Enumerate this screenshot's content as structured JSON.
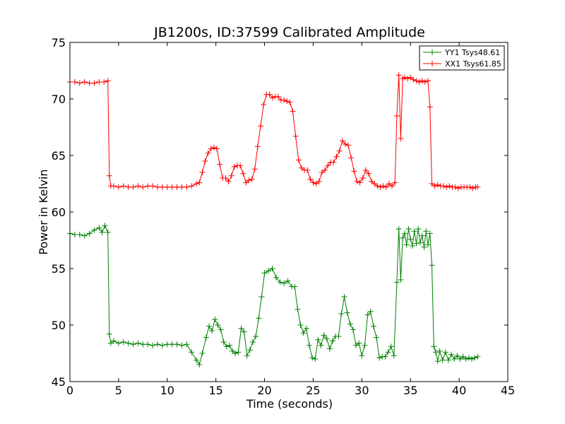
{
  "chart_data": {
    "type": "line",
    "title": "JB1200s, ID:37599 Calibrated Amplitude",
    "xlabel": "Time (seconds)",
    "ylabel": "Power in Kelvin",
    "xlim": [
      0,
      45
    ],
    "ylim": [
      45,
      75
    ],
    "xticks": [
      "0",
      "5",
      "10",
      "15",
      "20",
      "25",
      "30",
      "35",
      "40",
      "45"
    ],
    "yticks": [
      "45",
      "50",
      "55",
      "60",
      "65",
      "70",
      "75"
    ],
    "legend_position": "top-right",
    "marker": "plus",
    "series": [
      {
        "name": "YY1 Tsys48.61",
        "color": "#008000",
        "points": [
          [
            0,
            58.1
          ],
          [
            0.5,
            58.0
          ],
          [
            1,
            58.0
          ],
          [
            1.5,
            57.9
          ],
          [
            2,
            58.1
          ],
          [
            2.5,
            58.4
          ],
          [
            3,
            58.6
          ],
          [
            3.3,
            58.2
          ],
          [
            3.6,
            58.8
          ],
          [
            3.9,
            58.2
          ],
          [
            4.05,
            49.2
          ],
          [
            4.2,
            48.4
          ],
          [
            4.5,
            48.6
          ],
          [
            5,
            48.4
          ],
          [
            5.5,
            48.5
          ],
          [
            6,
            48.4
          ],
          [
            6.5,
            48.3
          ],
          [
            7,
            48.4
          ],
          [
            7.5,
            48.3
          ],
          [
            8,
            48.3
          ],
          [
            8.5,
            48.2
          ],
          [
            9,
            48.3
          ],
          [
            9.5,
            48.2
          ],
          [
            10,
            48.3
          ],
          [
            10.5,
            48.3
          ],
          [
            11,
            48.3
          ],
          [
            11.5,
            48.2
          ],
          [
            12,
            48.3
          ],
          [
            12.5,
            47.6
          ],
          [
            13,
            46.9
          ],
          [
            13.3,
            46.5
          ],
          [
            13.6,
            47.5
          ],
          [
            14,
            48.9
          ],
          [
            14.3,
            49.9
          ],
          [
            14.6,
            49.5
          ],
          [
            14.9,
            50.5
          ],
          [
            15.2,
            50.0
          ],
          [
            15.5,
            49.6
          ],
          [
            15.8,
            48.5
          ],
          [
            16.1,
            48.1
          ],
          [
            16.4,
            48.2
          ],
          [
            16.7,
            47.7
          ],
          [
            17,
            47.5
          ],
          [
            17.3,
            47.6
          ],
          [
            17.6,
            49.7
          ],
          [
            17.9,
            49.4
          ],
          [
            18.2,
            47.3
          ],
          [
            18.5,
            47.8
          ],
          [
            18.8,
            48.5
          ],
          [
            19.1,
            49.0
          ],
          [
            19.4,
            50.6
          ],
          [
            19.7,
            52.5
          ],
          [
            20,
            54.6
          ],
          [
            20.4,
            54.8
          ],
          [
            20.8,
            55.0
          ],
          [
            21.2,
            54.2
          ],
          [
            21.6,
            53.8
          ],
          [
            22,
            53.7
          ],
          [
            22.4,
            53.9
          ],
          [
            22.8,
            53.4
          ],
          [
            23.1,
            53.4
          ],
          [
            23.4,
            51.4
          ],
          [
            23.7,
            50.0
          ],
          [
            24,
            49.3
          ],
          [
            24.3,
            49.7
          ],
          [
            24.6,
            48.2
          ],
          [
            24.9,
            47.1
          ],
          [
            25.2,
            47.0
          ],
          [
            25.5,
            48.7
          ],
          [
            25.8,
            48.2
          ],
          [
            26.1,
            49.1
          ],
          [
            26.4,
            48.8
          ],
          [
            26.7,
            47.9
          ],
          [
            27,
            48.6
          ],
          [
            27.3,
            49.0
          ],
          [
            27.6,
            49.0
          ],
          [
            27.9,
            51.0
          ],
          [
            28.2,
            52.5
          ],
          [
            28.5,
            51.1
          ],
          [
            28.8,
            50.1
          ],
          [
            29.1,
            49.6
          ],
          [
            29.4,
            48.2
          ],
          [
            29.7,
            48.4
          ],
          [
            30,
            47.3
          ],
          [
            30.3,
            48.2
          ],
          [
            30.6,
            50.9
          ],
          [
            30.9,
            51.2
          ],
          [
            31.2,
            49.9
          ],
          [
            31.5,
            48.9
          ],
          [
            31.8,
            47.1
          ],
          [
            32.1,
            47.2
          ],
          [
            32.4,
            47.2
          ],
          [
            32.7,
            47.6
          ],
          [
            33,
            48.1
          ],
          [
            33.3,
            47.3
          ],
          [
            33.6,
            53.8
          ],
          [
            33.8,
            58.5
          ],
          [
            34,
            54.0
          ],
          [
            34.2,
            57.7
          ],
          [
            34.4,
            58.1
          ],
          [
            34.6,
            57.1
          ],
          [
            34.8,
            58.5
          ],
          [
            35,
            57.6
          ],
          [
            35.2,
            57.0
          ],
          [
            35.4,
            58.3
          ],
          [
            35.6,
            57.2
          ],
          [
            35.8,
            58.5
          ],
          [
            36,
            57.3
          ],
          [
            36.2,
            57.9
          ],
          [
            36.4,
            56.9
          ],
          [
            36.6,
            58.3
          ],
          [
            36.8,
            57.1
          ],
          [
            37,
            58.1
          ],
          [
            37.2,
            55.3
          ],
          [
            37.4,
            48.1
          ],
          [
            37.6,
            47.6
          ],
          [
            37.8,
            46.8
          ],
          [
            38,
            47.7
          ],
          [
            38.3,
            46.9
          ],
          [
            38.6,
            47.6
          ],
          [
            38.9,
            46.9
          ],
          [
            39.2,
            47.4
          ],
          [
            39.5,
            47.0
          ],
          [
            39.8,
            47.3
          ],
          [
            40.1,
            47.0
          ],
          [
            40.4,
            47.2
          ],
          [
            40.7,
            47.0
          ],
          [
            41,
            47.1
          ],
          [
            41.3,
            47.0
          ],
          [
            41.6,
            47.1
          ],
          [
            41.9,
            47.2
          ]
        ]
      },
      {
        "name": "XX1 Tsys61.85",
        "color": "#ff0000",
        "points": [
          [
            0,
            71.5
          ],
          [
            0.5,
            71.5
          ],
          [
            1,
            71.4
          ],
          [
            1.5,
            71.5
          ],
          [
            2,
            71.4
          ],
          [
            2.5,
            71.4
          ],
          [
            3,
            71.5
          ],
          [
            3.5,
            71.5
          ],
          [
            3.9,
            71.6
          ],
          [
            4.05,
            63.2
          ],
          [
            4.2,
            62.3
          ],
          [
            4.5,
            62.3
          ],
          [
            5,
            62.2
          ],
          [
            5.5,
            62.3
          ],
          [
            6,
            62.2
          ],
          [
            6.5,
            62.2
          ],
          [
            7,
            62.3
          ],
          [
            7.5,
            62.2
          ],
          [
            8,
            62.3
          ],
          [
            8.5,
            62.3
          ],
          [
            9,
            62.2
          ],
          [
            9.5,
            62.2
          ],
          [
            10,
            62.2
          ],
          [
            10.5,
            62.2
          ],
          [
            11,
            62.2
          ],
          [
            11.5,
            62.2
          ],
          [
            12,
            62.2
          ],
          [
            12.5,
            62.3
          ],
          [
            13,
            62.5
          ],
          [
            13.3,
            62.6
          ],
          [
            13.6,
            63.5
          ],
          [
            13.9,
            64.5
          ],
          [
            14.2,
            65.2
          ],
          [
            14.5,
            65.6
          ],
          [
            14.8,
            65.7
          ],
          [
            15.1,
            65.6
          ],
          [
            15.4,
            64.2
          ],
          [
            15.7,
            63.0
          ],
          [
            16,
            63.0
          ],
          [
            16.3,
            62.7
          ],
          [
            16.6,
            63.2
          ],
          [
            16.9,
            64.0
          ],
          [
            17.2,
            64.1
          ],
          [
            17.5,
            64.1
          ],
          [
            17.8,
            63.4
          ],
          [
            18.1,
            62.6
          ],
          [
            18.4,
            62.8
          ],
          [
            18.7,
            62.9
          ],
          [
            19,
            63.8
          ],
          [
            19.3,
            65.8
          ],
          [
            19.6,
            67.6
          ],
          [
            19.9,
            69.5
          ],
          [
            20.2,
            70.4
          ],
          [
            20.5,
            70.4
          ],
          [
            20.8,
            70.1
          ],
          [
            21.1,
            70.2
          ],
          [
            21.4,
            70.2
          ],
          [
            21.7,
            69.9
          ],
          [
            22,
            69.9
          ],
          [
            22.3,
            69.8
          ],
          [
            22.6,
            69.7
          ],
          [
            22.9,
            68.9
          ],
          [
            23.2,
            66.7
          ],
          [
            23.5,
            64.6
          ],
          [
            23.8,
            63.9
          ],
          [
            24.1,
            63.7
          ],
          [
            24.4,
            63.7
          ],
          [
            24.7,
            62.9
          ],
          [
            25,
            62.6
          ],
          [
            25.3,
            62.5
          ],
          [
            25.6,
            62.7
          ],
          [
            25.9,
            63.5
          ],
          [
            26.2,
            63.7
          ],
          [
            26.5,
            64.1
          ],
          [
            26.8,
            64.4
          ],
          [
            27.1,
            64.4
          ],
          [
            27.4,
            64.9
          ],
          [
            27.7,
            65.4
          ],
          [
            28,
            66.3
          ],
          [
            28.3,
            66.0
          ],
          [
            28.6,
            65.9
          ],
          [
            28.9,
            64.8
          ],
          [
            29.2,
            63.6
          ],
          [
            29.5,
            62.7
          ],
          [
            29.8,
            62.6
          ],
          [
            30.1,
            63.0
          ],
          [
            30.4,
            63.7
          ],
          [
            30.7,
            63.4
          ],
          [
            31,
            62.7
          ],
          [
            31.3,
            62.5
          ],
          [
            31.6,
            62.3
          ],
          [
            31.9,
            62.2
          ],
          [
            32.2,
            62.3
          ],
          [
            32.5,
            62.2
          ],
          [
            32.8,
            62.5
          ],
          [
            33.1,
            62.3
          ],
          [
            33.4,
            62.6
          ],
          [
            33.6,
            68.5
          ],
          [
            33.8,
            72.1
          ],
          [
            34,
            66.5
          ],
          [
            34.2,
            71.8
          ],
          [
            34.4,
            71.9
          ],
          [
            34.7,
            71.8
          ],
          [
            35,
            71.9
          ],
          [
            35.3,
            71.7
          ],
          [
            35.6,
            71.6
          ],
          [
            35.9,
            71.5
          ],
          [
            36.2,
            71.6
          ],
          [
            36.5,
            71.5
          ],
          [
            36.8,
            71.6
          ],
          [
            37,
            69.3
          ],
          [
            37.2,
            62.5
          ],
          [
            37.5,
            62.3
          ],
          [
            37.8,
            62.4
          ],
          [
            38.1,
            62.3
          ],
          [
            38.4,
            62.3
          ],
          [
            38.7,
            62.2
          ],
          [
            39,
            62.3
          ],
          [
            39.3,
            62.2
          ],
          [
            39.6,
            62.2
          ],
          [
            39.9,
            62.1
          ],
          [
            40.2,
            62.2
          ],
          [
            40.5,
            62.2
          ],
          [
            40.8,
            62.2
          ],
          [
            41.1,
            62.2
          ],
          [
            41.4,
            62.1
          ],
          [
            41.7,
            62.2
          ],
          [
            41.9,
            62.2
          ]
        ]
      }
    ]
  }
}
